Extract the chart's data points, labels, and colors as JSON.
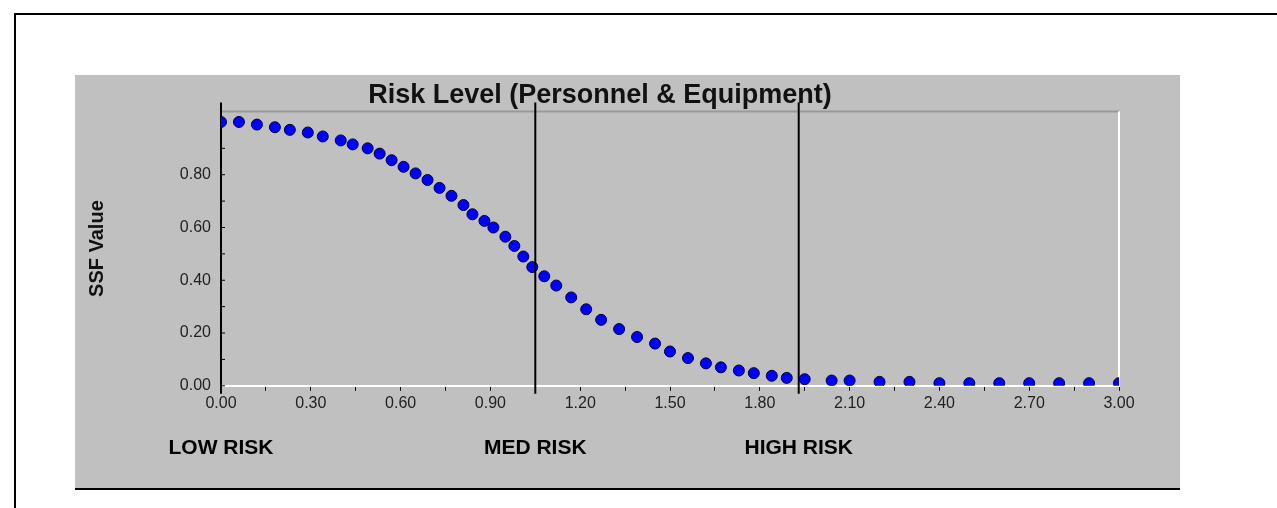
{
  "chart_data": {
    "type": "scatter",
    "title": "Risk Level (Personnel & Equipment)",
    "ylabel": "SSF Value",
    "xlim": [
      0,
      3
    ],
    "ylim": [
      0,
      1.04
    ],
    "xticks": [
      {
        "value": 0,
        "label": "0.00"
      },
      {
        "value": 0.15,
        "label": null
      },
      {
        "value": 0.3,
        "label": "0.30"
      },
      {
        "value": 0.45,
        "label": null
      },
      {
        "value": 0.6,
        "label": "0.60"
      },
      {
        "value": 0.75,
        "label": null
      },
      {
        "value": 0.9,
        "label": "0.90"
      },
      {
        "value": 1.05,
        "label": null
      },
      {
        "value": 1.2,
        "label": "1.20"
      },
      {
        "value": 1.35,
        "label": null
      },
      {
        "value": 1.5,
        "label": "1.50"
      },
      {
        "value": 1.65,
        "label": null
      },
      {
        "value": 1.8,
        "label": "1.80"
      },
      {
        "value": 1.95,
        "label": null
      },
      {
        "value": 2.1,
        "label": "2.10"
      },
      {
        "value": 2.25,
        "label": null
      },
      {
        "value": 2.4,
        "label": "2.40"
      },
      {
        "value": 2.55,
        "label": null
      },
      {
        "value": 2.7,
        "label": "2.70"
      },
      {
        "value": 2.85,
        "label": null
      },
      {
        "value": 3,
        "label": "3.00"
      }
    ],
    "yticks": [
      {
        "value": 0,
        "label": "0.00"
      },
      {
        "value": 0.1,
        "label": null
      },
      {
        "value": 0.2,
        "label": "0.20"
      },
      {
        "value": 0.3,
        "label": null
      },
      {
        "value": 0.4,
        "label": "0.40"
      },
      {
        "value": 0.5,
        "label": null
      },
      {
        "value": 0.6,
        "label": "0.60"
      },
      {
        "value": 0.7,
        "label": null
      },
      {
        "value": 0.8,
        "label": "0.80"
      },
      {
        "value": 0.9,
        "label": null
      }
    ],
    "grid": false,
    "legend": false,
    "marker": "circle",
    "annotations": [
      "LOW RISK"
    ],
    "ref_lines": [
      {
        "axis": "x",
        "value": 1.05,
        "label": "MED RISK",
        "color": "#000000"
      },
      {
        "axis": "x",
        "value": 1.93,
        "label": "HIGH RISK",
        "color": "#000000"
      }
    ],
    "series": [
      {
        "color": "#0000ff",
        "x": [
          0,
          0.06,
          0.12,
          0.18,
          0.23,
          0.29,
          0.34,
          0.4,
          0.44,
          0.49,
          0.53,
          0.57,
          0.61,
          0.65,
          0.69,
          0.73,
          0.77,
          0.81,
          0.84,
          0.88,
          0.91,
          0.95,
          0.98,
          1.01,
          1.04,
          1.08,
          1.12,
          1.17,
          1.22,
          1.27,
          1.33,
          1.39,
          1.45,
          1.5,
          1.56,
          1.62,
          1.67,
          1.73,
          1.78,
          1.84,
          1.89,
          1.95,
          2.04,
          2.1,
          2.2,
          2.3,
          2.4,
          2.5,
          2.6,
          2.7,
          2.8,
          2.9,
          3
        ],
        "values": [
          1,
          1,
          0.99,
          0.98,
          0.97,
          0.96,
          0.945,
          0.93,
          0.915,
          0.9,
          0.88,
          0.855,
          0.83,
          0.805,
          0.78,
          0.75,
          0.72,
          0.685,
          0.65,
          0.625,
          0.6,
          0.565,
          0.53,
          0.49,
          0.45,
          0.415,
          0.38,
          0.335,
          0.29,
          0.25,
          0.215,
          0.185,
          0.16,
          0.13,
          0.105,
          0.085,
          0.07,
          0.058,
          0.048,
          0.038,
          0.03,
          0.025,
          0.02,
          0.02,
          0.015,
          0.015,
          0.01,
          0.01,
          0.01,
          0.01,
          0.01,
          0.01,
          0.01
        ]
      }
    ]
  }
}
